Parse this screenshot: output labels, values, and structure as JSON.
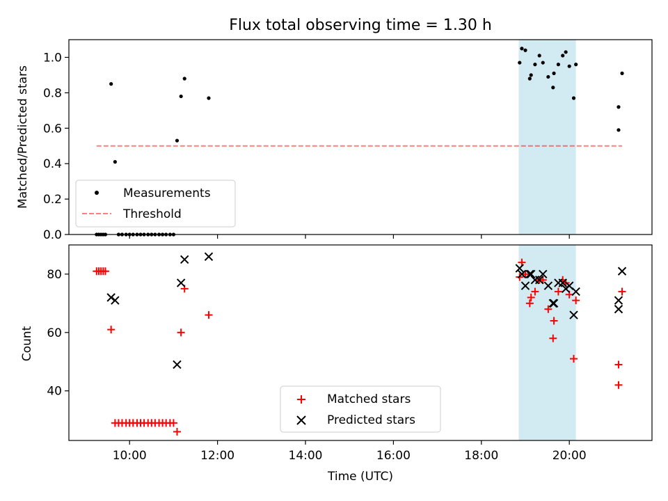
{
  "chart_data": [
    {
      "type": "scatter",
      "title": "Flux total observing time = 1.30 h",
      "xlabel": "",
      "ylabel": "Matched/Predicted stars",
      "xlim_hours": [
        8.62,
        21.88
      ],
      "ylim": [
        0.0,
        1.1
      ],
      "yticks": [
        "0.0",
        "0.2",
        "0.4",
        "0.6",
        "0.8",
        "1.0"
      ],
      "highlight_span_hours": [
        18.85,
        20.15
      ],
      "highlight_color": "#add8e6",
      "threshold": {
        "name": "Threshold",
        "y": 0.5,
        "x_range_hours": [
          9.25,
          21.2
        ],
        "color": "#ff0000"
      },
      "legend_position": "lower-left",
      "series": [
        {
          "name": "Measurements",
          "color": "#000000",
          "points": [
            [
              9.25,
              0.0
            ],
            [
              9.3,
              0.0
            ],
            [
              9.35,
              0.0
            ],
            [
              9.4,
              0.0
            ],
            [
              9.45,
              0.0
            ],
            [
              9.58,
              0.85
            ],
            [
              9.67,
              0.41
            ],
            [
              9.75,
              0.0
            ],
            [
              9.83,
              0.0
            ],
            [
              9.92,
              0.0
            ],
            [
              10.0,
              0.0
            ],
            [
              10.08,
              0.0
            ],
            [
              10.17,
              0.0
            ],
            [
              10.25,
              0.0
            ],
            [
              10.33,
              0.0
            ],
            [
              10.42,
              0.0
            ],
            [
              10.5,
              0.0
            ],
            [
              10.58,
              0.0
            ],
            [
              10.67,
              0.0
            ],
            [
              10.75,
              0.0
            ],
            [
              10.83,
              0.0
            ],
            [
              10.92,
              0.0
            ],
            [
              11.0,
              0.0
            ],
            [
              11.08,
              0.53
            ],
            [
              11.17,
              0.78
            ],
            [
              11.25,
              0.88
            ],
            [
              11.8,
              0.77
            ],
            [
              18.87,
              0.97
            ],
            [
              18.92,
              1.05
            ],
            [
              19.0,
              1.04
            ],
            [
              19.1,
              0.88
            ],
            [
              19.13,
              0.9
            ],
            [
              19.22,
              0.96
            ],
            [
              19.32,
              1.01
            ],
            [
              19.4,
              0.97
            ],
            [
              19.52,
              0.89
            ],
            [
              19.63,
              0.83
            ],
            [
              19.65,
              0.91
            ],
            [
              19.75,
              0.96
            ],
            [
              19.85,
              1.01
            ],
            [
              19.92,
              1.03
            ],
            [
              20.0,
              0.95
            ],
            [
              20.1,
              0.77
            ],
            [
              20.15,
              0.96
            ],
            [
              21.12,
              0.72
            ],
            [
              21.12,
              0.59
            ],
            [
              21.2,
              0.91
            ]
          ]
        }
      ]
    },
    {
      "type": "scatter",
      "title": "",
      "xlabel": "Time (UTC)",
      "ylabel": "Count",
      "xlim_hours": [
        8.62,
        21.88
      ],
      "ylim": [
        23,
        90
      ],
      "xticks": [
        {
          "h": 10,
          "label": "10:00"
        },
        {
          "h": 12,
          "label": "12:00"
        },
        {
          "h": 14,
          "label": "14:00"
        },
        {
          "h": 16,
          "label": "16:00"
        },
        {
          "h": 18,
          "label": "18:00"
        },
        {
          "h": 20,
          "label": "20:00"
        }
      ],
      "yticks": [
        "40",
        "60",
        "80"
      ],
      "highlight_span_hours": [
        18.85,
        20.15
      ],
      "highlight_color": "#add8e6",
      "legend_position": "lower-center",
      "series": [
        {
          "name": "Matched stars",
          "marker": "plus",
          "color": "#ff0000",
          "points": [
            [
              9.25,
              81
            ],
            [
              9.3,
              81
            ],
            [
              9.35,
              81
            ],
            [
              9.4,
              81
            ],
            [
              9.45,
              81
            ],
            [
              9.58,
              61
            ],
            [
              9.67,
              29
            ],
            [
              9.75,
              29
            ],
            [
              9.83,
              29
            ],
            [
              9.92,
              29
            ],
            [
              10.0,
              29
            ],
            [
              10.08,
              29
            ],
            [
              10.17,
              29
            ],
            [
              10.25,
              29
            ],
            [
              10.33,
              29
            ],
            [
              10.42,
              29
            ],
            [
              10.5,
              29
            ],
            [
              10.58,
              29
            ],
            [
              10.67,
              29
            ],
            [
              10.75,
              29
            ],
            [
              10.83,
              29
            ],
            [
              10.92,
              29
            ],
            [
              11.0,
              29
            ],
            [
              11.08,
              26
            ],
            [
              11.17,
              60
            ],
            [
              11.25,
              75
            ],
            [
              11.8,
              66
            ],
            [
              18.87,
              79
            ],
            [
              18.92,
              84
            ],
            [
              19.0,
              80
            ],
            [
              19.1,
              70
            ],
            [
              19.13,
              72
            ],
            [
              19.22,
              74
            ],
            [
              19.32,
              78
            ],
            [
              19.4,
              78
            ],
            [
              19.52,
              68
            ],
            [
              19.63,
              58
            ],
            [
              19.65,
              64
            ],
            [
              19.75,
              74
            ],
            [
              19.85,
              78
            ],
            [
              19.92,
              77
            ],
            [
              20.0,
              73
            ],
            [
              20.1,
              51
            ],
            [
              20.15,
              71
            ],
            [
              21.12,
              49
            ],
            [
              21.12,
              42
            ],
            [
              21.2,
              74
            ]
          ]
        },
        {
          "name": "Predicted stars",
          "marker": "x",
          "color": "#000000",
          "points": [
            [
              9.58,
              72
            ],
            [
              9.67,
              71
            ],
            [
              11.08,
              49
            ],
            [
              11.17,
              77
            ],
            [
              11.25,
              85
            ],
            [
              11.8,
              86
            ],
            [
              18.87,
              82
            ],
            [
              18.92,
              80
            ],
            [
              19.0,
              76
            ],
            [
              19.1,
              80
            ],
            [
              19.13,
              80
            ],
            [
              19.22,
              78
            ],
            [
              19.32,
              78
            ],
            [
              19.4,
              80
            ],
            [
              19.52,
              76
            ],
            [
              19.63,
              70
            ],
            [
              19.65,
              70
            ],
            [
              19.75,
              77
            ],
            [
              19.85,
              77
            ],
            [
              19.92,
              75
            ],
            [
              20.0,
              76
            ],
            [
              20.1,
              66
            ],
            [
              20.15,
              74
            ],
            [
              21.12,
              71
            ],
            [
              21.12,
              68
            ],
            [
              21.2,
              81
            ]
          ]
        }
      ]
    }
  ]
}
